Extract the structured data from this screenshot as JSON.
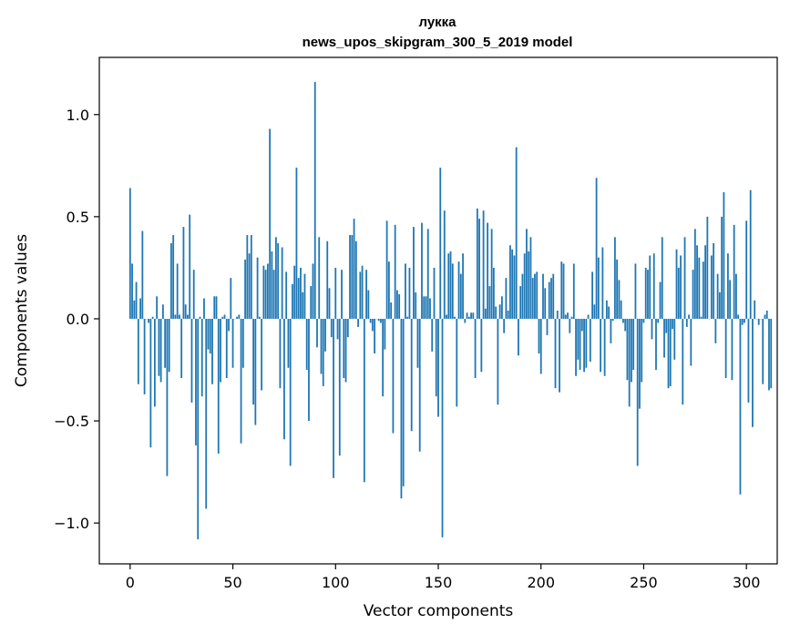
{
  "chart_data": {
    "type": "bar",
    "title": "лукка",
    "subtitle": "news_upos_skipgram_300_5_2019 model",
    "xlabel": "Vector components",
    "ylabel": "Components values",
    "xlim": [
      -15,
      315
    ],
    "ylim": [
      -1.2,
      1.28
    ],
    "xticks": [
      0,
      50,
      100,
      150,
      200,
      250,
      300
    ],
    "xtick_labels": [
      "0",
      "50",
      "100",
      "150",
      "200",
      "250",
      "300"
    ],
    "yticks": [
      -1.0,
      -0.5,
      0.0,
      0.5,
      1.0
    ],
    "ytick_labels": [
      "−1.0",
      "−0.5",
      "0.0",
      "0.5",
      "1.0"
    ],
    "bar_color": "#1f77b4",
    "grid": false,
    "values": [
      0.64,
      0.27,
      0.09,
      0.18,
      -0.32,
      0.1,
      0.43,
      -0.37,
      0,
      -0.02,
      -0.63,
      0.01,
      -0.43,
      0.11,
      -0.28,
      -0.31,
      0.07,
      -0.24,
      -0.77,
      -0.26,
      0.37,
      0.41,
      0.02,
      0.27,
      0.02,
      -0.29,
      0.45,
      0.07,
      0.02,
      0.51,
      -0.41,
      0.24,
      -0.62,
      -1.08,
      0.01,
      -0.38,
      0.1,
      -0.93,
      -0.15,
      -0.17,
      -0.32,
      0.11,
      0.11,
      -0.66,
      -0.31,
      0.01,
      0.02,
      -0.29,
      -0.06,
      0.2,
      -0.24,
      0.0,
      0.01,
      0.02,
      -0.61,
      -0.24,
      0.29,
      0.41,
      0.32,
      0.41,
      -0.42,
      -0.52,
      0.3,
      0.01,
      -0.35,
      0.26,
      0.24,
      0.27,
      0.93,
      0.33,
      0.24,
      0.4,
      0.37,
      -0.34,
      0.35,
      -0.59,
      0.23,
      -0.24,
      -0.72,
      0.17,
      0.26,
      0.74,
      0.2,
      0.25,
      0.13,
      0.22,
      -0.25,
      -0.5,
      0.16,
      0.27,
      1.16,
      -0.14,
      0.4,
      -0.27,
      -0.33,
      -0.16,
      0.38,
      0.15,
      -0.09,
      -0.78,
      0.25,
      -0.1,
      -0.67,
      0.24,
      -0.29,
      -0.31,
      -0.09,
      0.41,
      0.41,
      0.49,
      0.38,
      -0.04,
      0.23,
      0.26,
      -0.8,
      0.24,
      0.14,
      -0.02,
      -0.06,
      -0.17,
      0.0,
      -0.01,
      -0.02,
      -0.38,
      -0.15,
      0.48,
      0.28,
      0.08,
      -0.56,
      0.46,
      0.14,
      0.12,
      -0.88,
      -0.82,
      0.27,
      0.01,
      0.25,
      -0.55,
      0.45,
      0.13,
      -0.24,
      -0.65,
      0.47,
      0.11,
      0.11,
      0.44,
      0.1,
      -0.16,
      0.25,
      -0.38,
      -0.48,
      0.74,
      -1.07,
      0.53,
      0.02,
      0.32,
      0.33,
      0.27,
      0.01,
      -0.43,
      0.28,
      0.22,
      0.32,
      -0.02,
      0.03,
      0.01,
      0.03,
      0.03,
      -0.29,
      0.54,
      0.49,
      -0.26,
      0.53,
      0.05,
      0.47,
      0.16,
      0.44,
      0.25,
      0.06,
      -0.42,
      0.07,
      0.11,
      -0.07,
      0.2,
      0.04,
      0.36,
      0.34,
      0.31,
      0.84,
      -0.18,
      0.16,
      0.22,
      0.32,
      0.44,
      0.33,
      0.4,
      0.2,
      0.22,
      0.23,
      -0.17,
      -0.27,
      0.22,
      0.15,
      -0.08,
      0.18,
      0.2,
      0.22,
      -0.34,
      0.04,
      -0.36,
      0.28,
      0.27,
      0.02,
      0.03,
      -0.07,
      0.01,
      0.27,
      -0.28,
      -0.2,
      -0.25,
      -0.06,
      -0.26,
      -0.24,
      0.02,
      -0.21,
      0.23,
      0.07,
      0.69,
      0.3,
      -0.26,
      0.35,
      -0.28,
      0.09,
      0.06,
      -0.12,
      -0.01,
      0.4,
      0.29,
      0.19,
      0.09,
      -0.02,
      -0.06,
      -0.3,
      -0.43,
      -0.31,
      -0.25,
      0.27,
      -0.72,
      -0.44,
      -0.31,
      -0.02,
      0.25,
      0.24,
      0.31,
      -0.1,
      0.32,
      -0.25,
      -0.02,
      0.18,
      0.4,
      -0.19,
      -0.07,
      -0.34,
      -0.33,
      -0.05,
      -0.2,
      0.34,
      0.25,
      0.31,
      -0.42,
      0.4,
      -0.04,
      0.02,
      -0.23,
      0.24,
      0.44,
      0.36,
      0.3,
      0.01,
      0.28,
      0.36,
      0.5,
      0.0,
      0.31,
      0.37,
      -0.12,
      0.22,
      0.13,
      0.5,
      0.62,
      -0.29,
      0.32,
      0.19,
      -0.3,
      0.46,
      0.22,
      0.02,
      -0.86,
      -0.03,
      -0.02,
      0.48,
      -0.41,
      0.63,
      -0.53,
      0.09,
      0.0,
      -0.03,
      0.0,
      -0.32,
      0.02,
      0.04,
      -0.35,
      -0.34
    ]
  }
}
